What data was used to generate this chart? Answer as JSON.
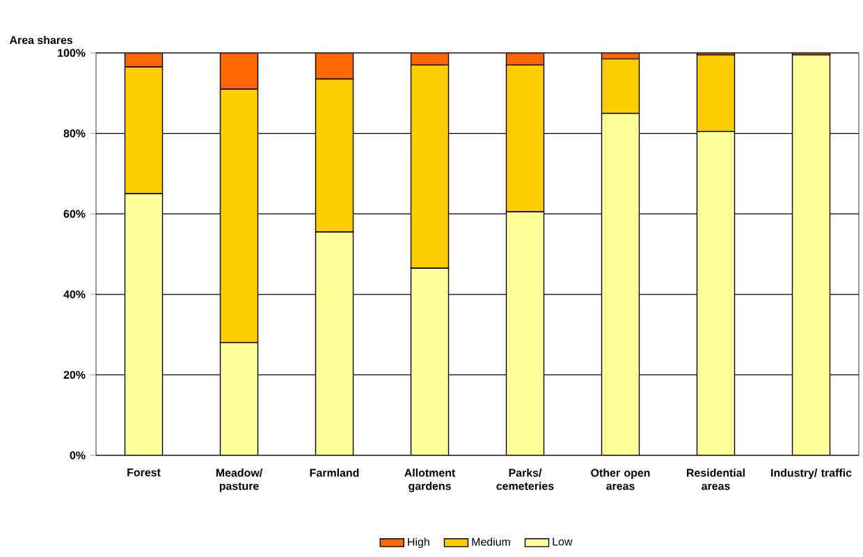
{
  "chart_data": {
    "type": "bar",
    "stacked": true,
    "ylabel": "Area shares",
    "categories": [
      "Forest",
      "Meadow/ pasture",
      "Farmland",
      "Allotment gardens",
      "Parks/ cemeteries",
      "Other open areas",
      "Residential areas",
      "Industry/ traffic"
    ],
    "series": [
      {
        "name": "Low",
        "color": "#ffff99",
        "values": [
          65,
          28,
          55.5,
          46.5,
          60.5,
          85,
          80.5,
          99.5
        ]
      },
      {
        "name": "Medium",
        "color": "#ffcc00",
        "values": [
          31.5,
          63,
          38,
          50.5,
          36.5,
          13.5,
          19,
          0
        ]
      },
      {
        "name": "High",
        "color": "#ff6600",
        "values": [
          3.5,
          9,
          6.5,
          3,
          3,
          1.5,
          0.5,
          0.5
        ]
      }
    ],
    "ylim": [
      0,
      100
    ],
    "yticks": [
      {
        "value": 0,
        "label": "0%"
      },
      {
        "value": 20,
        "label": "20%"
      },
      {
        "value": 40,
        "label": "40%"
      },
      {
        "value": 60,
        "label": "60%"
      },
      {
        "value": 80,
        "label": "80%"
      },
      {
        "value": 100,
        "label": "100%"
      }
    ],
    "grid": "y",
    "legend": "bottom"
  }
}
